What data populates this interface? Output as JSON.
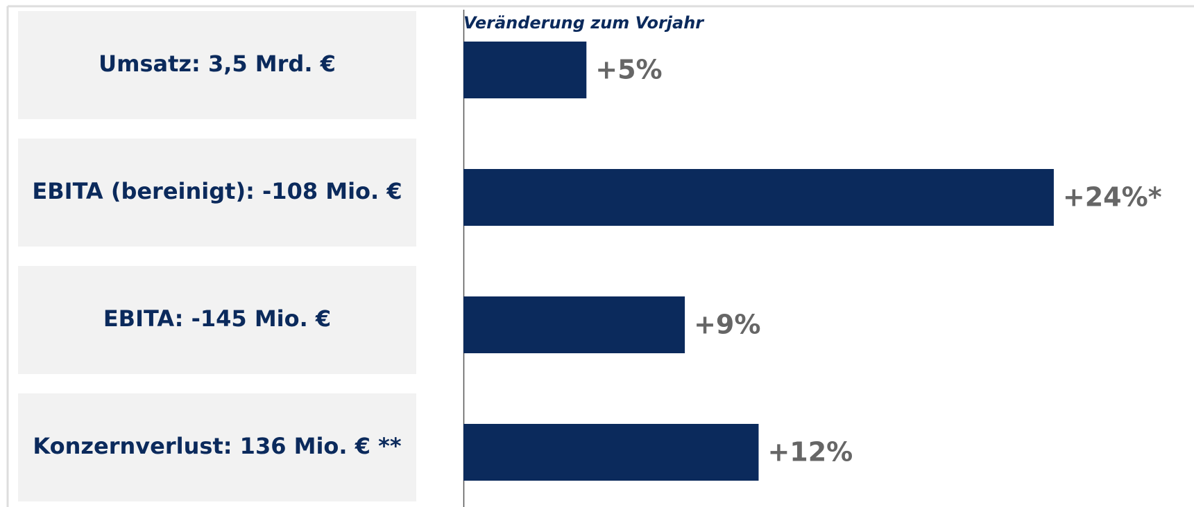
{
  "chart_data": {
    "type": "hbar",
    "title": "Veränderung zum Vorjahr",
    "categories": [
      "Umsatz: 3,5 Mrd. €",
      "EBITA (bereinigt): -108 Mio. €",
      "EBITA: -145 Mio. €",
      "Konzernverlust: 136 Mio. € **"
    ],
    "values": [
      5,
      24,
      9,
      12
    ],
    "value_labels": [
      "+5%",
      "+24%*",
      "+9%",
      "+12%"
    ],
    "color": "#0b2a5c",
    "xlim": [
      0,
      29.7
    ]
  }
}
